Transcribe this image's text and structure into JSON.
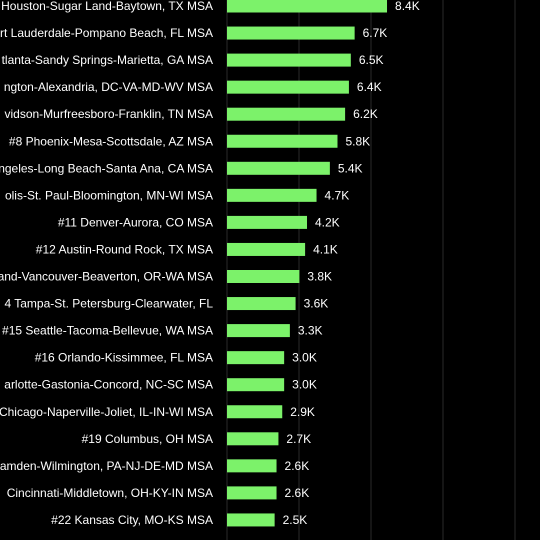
{
  "chart_data": {
    "type": "bar",
    "orientation": "horizontal",
    "categories": [
      "Houston-Sugar Land-Baytown, TX MSA",
      "rt Lauderdale-Pompano Beach, FL MSA",
      "tlanta-Sandy Springs-Marietta, GA MSA",
      "ngton-Alexandria, DC-VA-MD-WV MSA",
      "vidson-Murfreesboro-Franklin, TN MSA",
      "#8 Phoenix-Mesa-Scottsdale, AZ MSA",
      "ngeles-Long Beach-Santa Ana, CA MSA",
      "olis-St. Paul-Bloomington, MN-WI MSA",
      "#11 Denver-Aurora, CO MSA",
      "#12 Austin-Round Rock, TX MSA",
      "and-Vancouver-Beaverton, OR-WA MSA",
      "4 Tampa-St. Petersburg-Clearwater, FL",
      "#15 Seattle-Tacoma-Bellevue, WA MSA",
      "#16 Orlando-Kissimmee, FL MSA",
      "arlotte-Gastonia-Concord, NC-SC MSA",
      "Chicago-Naperville-Joliet, IL-IN-WI MSA",
      "#19 Columbus, OH MSA",
      "amden-Wilmington, PA-NJ-DE-MD MSA",
      "Cincinnati-Middletown, OH-KY-IN MSA",
      "#22 Kansas City, MO-KS MSA"
    ],
    "values": [
      8400,
      6700,
      6500,
      6400,
      6200,
      5800,
      5400,
      4700,
      4200,
      4100,
      3800,
      3600,
      3300,
      3000,
      3000,
      2900,
      2700,
      2600,
      2600,
      2500
    ],
    "value_labels": [
      "8.4K",
      "6.7K",
      "6.5K",
      "6.4K",
      "6.2K",
      "5.8K",
      "5.4K",
      "4.7K",
      "4.2K",
      "4.1K",
      "3.8K",
      "3.6K",
      "3.3K",
      "3.0K",
      "3.0K",
      "2.9K",
      "2.7K",
      "2.6K",
      "2.6K",
      "2.5K"
    ],
    "bar_color": "#7CF26A",
    "background": "#000000",
    "grid": true,
    "grid_color": "#2a2a2a",
    "text_color": "#ffffff"
  }
}
